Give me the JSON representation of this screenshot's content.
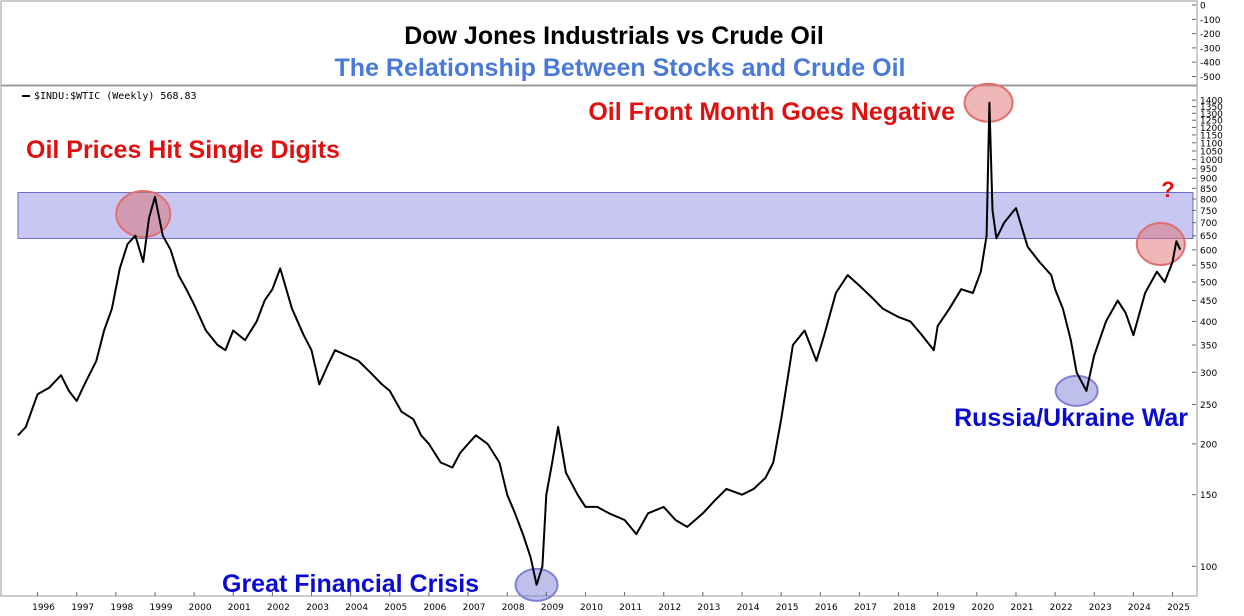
{
  "chart_data": {
    "type": "line",
    "title": "Dow Jones Industrials vs Crude Oil",
    "subtitle": "The Relationship Between Stocks and Crude Oil",
    "legend": "$INDU:$WTIC (Weekly) 568.83",
    "yscale": "log",
    "ylim": [
      85,
      1500
    ],
    "xlim": [
      1995.5,
      2025.6
    ],
    "x_ticks": [
      1996,
      1997,
      1998,
      1999,
      2000,
      2001,
      2002,
      2003,
      2004,
      2005,
      2006,
      2007,
      2008,
      2009,
      2010,
      2011,
      2012,
      2013,
      2014,
      2015,
      2016,
      2017,
      2018,
      2019,
      2020,
      2021,
      2022,
      2023,
      2024,
      2025
    ],
    "y_ticks": [
      100,
      150,
      200,
      250,
      300,
      350,
      400,
      450,
      500,
      550,
      600,
      650,
      700,
      750,
      800,
      850,
      900,
      950,
      1000,
      1050,
      1100,
      1150,
      1200,
      1250,
      1300,
      1350,
      1400
    ],
    "top_panel_ticks": [
      "0",
      "-100",
      "-200",
      "-300",
      "-400",
      "-500"
    ],
    "series": [
      {
        "x": [
          1995.5,
          1995.7,
          1996.0,
          1996.3,
          1996.6,
          1996.8,
          1997.0,
          1997.2,
          1997.5,
          1997.7,
          1997.9,
          1998.1,
          1998.3,
          1998.5,
          1998.7,
          1998.85,
          1999.0,
          1999.2,
          1999.4,
          1999.6,
          1999.8,
          2000.0,
          2000.3,
          2000.6,
          2000.8,
          2001.0,
          2001.3,
          2001.6,
          2001.8,
          2002.0,
          2002.2,
          2002.5,
          2002.8,
          2003.0,
          2003.2,
          2003.4,
          2003.6,
          2003.9,
          2004.2,
          2004.5,
          2004.8,
          2005.0,
          2005.3,
          2005.6,
          2005.8,
          2006.0,
          2006.3,
          2006.6,
          2006.8,
          2007.0,
          2007.2,
          2007.5,
          2007.8,
          2008.0,
          2008.2,
          2008.4,
          2008.6,
          2008.75,
          2008.9,
          2009.0,
          2009.15,
          2009.3,
          2009.5,
          2009.8,
          2010.0,
          2010.3,
          2010.6,
          2011.0,
          2011.3,
          2011.6,
          2012.0,
          2012.3,
          2012.6,
          2013.0,
          2013.3,
          2013.6,
          2014.0,
          2014.3,
          2014.6,
          2014.8,
          2015.0,
          2015.3,
          2015.6,
          2015.9,
          2016.1,
          2016.4,
          2016.7,
          2017.0,
          2017.3,
          2017.6,
          2018.0,
          2018.3,
          2018.6,
          2018.9,
          2019.0,
          2019.3,
          2019.6,
          2019.9,
          2020.1,
          2020.25,
          2020.32,
          2020.4,
          2020.5,
          2020.7,
          2020.9,
          2021.0,
          2021.3,
          2021.6,
          2021.9,
          2022.0,
          2022.2,
          2022.4,
          2022.55,
          2022.8,
          2023.0,
          2023.3,
          2023.6,
          2023.8,
          2024.0,
          2024.3,
          2024.6,
          2024.8,
          2025.0,
          2025.1,
          2025.2
        ],
        "y": [
          210,
          220,
          265,
          275,
          295,
          270,
          255,
          280,
          320,
          380,
          430,
          540,
          620,
          650,
          560,
          720,
          810,
          650,
          600,
          520,
          480,
          440,
          380,
          350,
          340,
          380,
          360,
          400,
          450,
          480,
          540,
          430,
          370,
          340,
          280,
          310,
          340,
          330,
          320,
          300,
          280,
          270,
          240,
          230,
          210,
          200,
          180,
          175,
          190,
          200,
          210,
          200,
          180,
          150,
          135,
          120,
          105,
          90,
          100,
          150,
          180,
          220,
          170,
          150,
          140,
          140,
          135,
          130,
          120,
          135,
          140,
          130,
          125,
          135,
          145,
          155,
          150,
          155,
          165,
          180,
          230,
          350,
          380,
          320,
          370,
          470,
          520,
          490,
          460,
          430,
          410,
          400,
          370,
          340,
          390,
          430,
          480,
          470,
          530,
          650,
          1380,
          750,
          640,
          700,
          740,
          760,
          610,
          560,
          520,
          480,
          430,
          360,
          300,
          270,
          330,
          400,
          450,
          420,
          370,
          470,
          530,
          500,
          560,
          630,
          600
        ]
      }
    ],
    "band": {
      "low": 640,
      "high": 830,
      "color": "#9999e8"
    },
    "annotations": [
      {
        "label": "Oil Prices Hit Single Digits",
        "x": 1998.7,
        "y": 735,
        "color": "#e01010",
        "circle_color": "#e07070"
      },
      {
        "label": "Oil Front Month Goes Negative",
        "x": 2020.3,
        "y": 1380,
        "color": "#e01010",
        "circle_color": "#e07070"
      },
      {
        "label": "Great Financial Crisis",
        "x": 2008.75,
        "y": 90,
        "color": "#0a0ad0",
        "circle_color": "#8080d8"
      },
      {
        "label": "Russia/Ukraine War",
        "x": 2022.55,
        "y": 270,
        "color": "#0a0ad0",
        "circle_color": "#8080d8"
      },
      {
        "label": "?",
        "x": 2024.7,
        "y": 620,
        "color": "#e01010",
        "circle_color": "#e07070"
      }
    ],
    "grid": false
  }
}
